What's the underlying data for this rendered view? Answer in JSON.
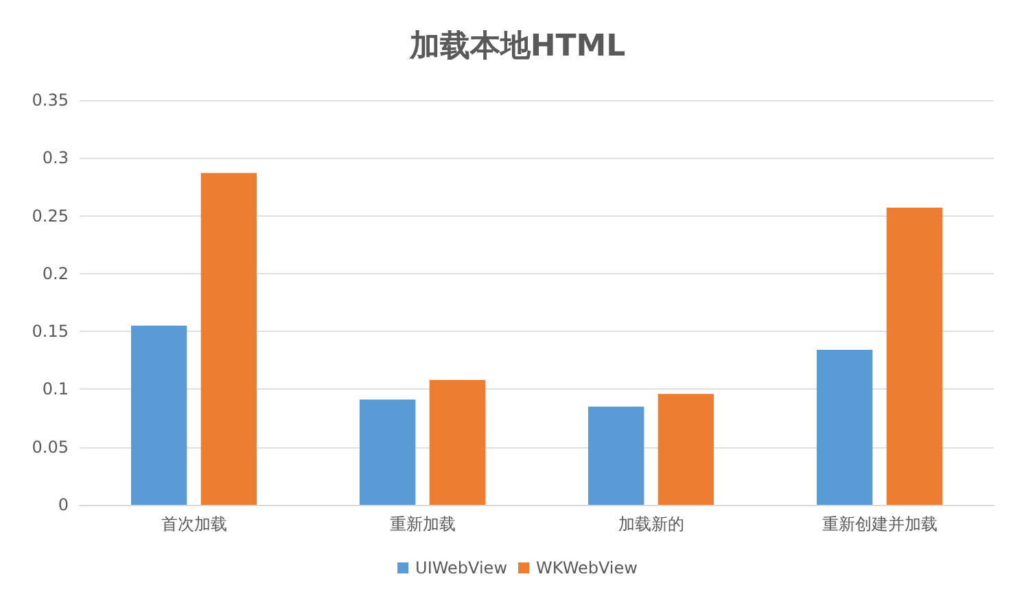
{
  "chart_data": {
    "type": "bar",
    "title": "加载本地HTML",
    "categories": [
      "首次加载",
      "重新加载",
      "加载新的",
      "重新创建并加载"
    ],
    "series": [
      {
        "name": "UIWebView",
        "color": "#5b9bd5",
        "values": [
          0.155,
          0.091,
          0.085,
          0.134
        ]
      },
      {
        "name": "WKWebView",
        "color": "#ed7d31",
        "values": [
          0.287,
          0.108,
          0.096,
          0.257
        ]
      }
    ],
    "ylim": [
      0,
      0.35
    ],
    "yticks": [
      0,
      0.05,
      0.1,
      0.15,
      0.2,
      0.25,
      0.3,
      0.35
    ],
    "grid": "y",
    "legend": "bottom"
  }
}
